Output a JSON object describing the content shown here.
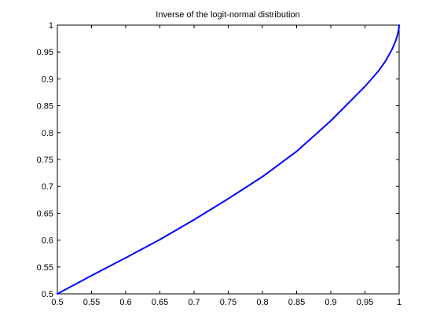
{
  "chart_data": {
    "type": "line",
    "title": "Inverse of the logit-normal distribution",
    "xlabel": "",
    "ylabel": "",
    "xlim": [
      0.5,
      1
    ],
    "ylim": [
      0.5,
      1
    ],
    "xticks": [
      "0.5",
      "0.55",
      "0.6",
      "0.65",
      "0.7",
      "0.75",
      "0.8",
      "0.85",
      "0.9",
      "0.95",
      "1"
    ],
    "yticks": [
      "0.5",
      "0.55",
      "0.6",
      "0.65",
      "0.7",
      "0.75",
      "0.8",
      "0.85",
      "0.9",
      "0.95",
      "1"
    ],
    "grid": false,
    "series": [
      {
        "color": "#0000ff",
        "x": [
          0.5,
          0.55,
          0.6,
          0.65,
          0.7,
          0.75,
          0.8,
          0.85,
          0.9,
          0.95,
          0.97,
          0.98,
          0.99,
          0.995,
          0.998,
          0.9995,
          1.0
        ],
        "y": [
          0.5,
          0.534,
          0.567,
          0.601,
          0.638,
          0.677,
          0.718,
          0.765,
          0.822,
          0.886,
          0.915,
          0.933,
          0.956,
          0.971,
          0.984,
          0.993,
          1.0
        ]
      }
    ]
  }
}
